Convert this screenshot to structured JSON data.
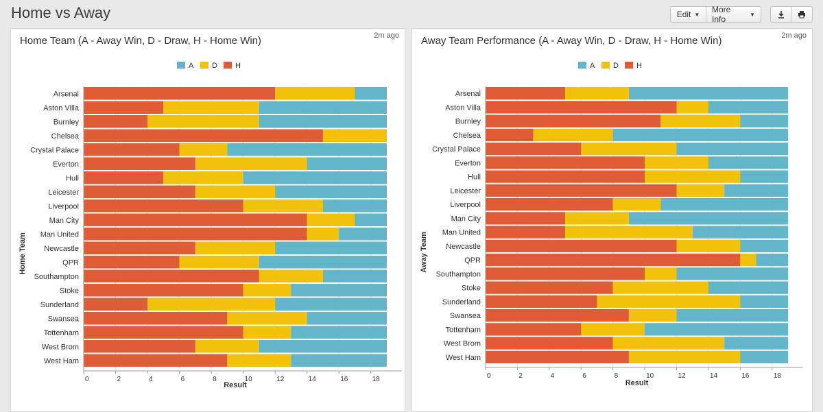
{
  "dashboard": {
    "title": "Home vs Away",
    "edit_label": "Edit",
    "more_info_label": "More Info",
    "download_icon": "download-icon",
    "print_icon": "print-icon"
  },
  "panels": {
    "home": {
      "title": "Home Team (A - Away Win, D - Draw, H - Home Win)",
      "timestamp": "2m ago"
    },
    "away": {
      "title": "Away Team Performance (A - Away Win, D - Draw, H - Home Win)",
      "timestamp": "2m ago"
    }
  },
  "chart_data": [
    {
      "type": "bar",
      "orientation": "horizontal",
      "stacked": true,
      "title": "Home Team (A - Away Win, D - Draw, H - Home Win)",
      "xlabel": "Result",
      "ylabel": "Home Team",
      "xlim": [
        0,
        19
      ],
      "xticks": [
        0,
        2,
        4,
        6,
        8,
        10,
        12,
        14,
        16,
        18
      ],
      "grid": true,
      "legend": "top-center",
      "categories": [
        "Arsenal",
        "Aston Villa",
        "Burnley",
        "Chelsea",
        "Crystal Palace",
        "Everton",
        "Hull",
        "Leicester",
        "Liverpool",
        "Man City",
        "Man United",
        "Newcastle",
        "QPR",
        "Southampton",
        "Stoke",
        "Sunderland",
        "Swansea",
        "Tottenham",
        "West Brom",
        "West Ham"
      ],
      "series": [
        {
          "name": "H",
          "color": "#e05c36",
          "values": [
            12,
            5,
            4,
            15,
            6,
            7,
            5,
            7,
            10,
            14,
            14,
            7,
            6,
            11,
            10,
            4,
            9,
            10,
            7,
            9
          ]
        },
        {
          "name": "D",
          "color": "#f2c10c",
          "values": [
            5,
            6,
            7,
            4,
            3,
            7,
            5,
            5,
            5,
            3,
            2,
            5,
            5,
            4,
            3,
            8,
            5,
            3,
            4,
            4
          ]
        },
        {
          "name": "A",
          "color": "#63b6c9",
          "values": [
            2,
            8,
            8,
            0,
            10,
            5,
            9,
            7,
            4,
            2,
            3,
            7,
            8,
            4,
            6,
            7,
            5,
            6,
            8,
            6
          ]
        }
      ],
      "legend_order": [
        "A",
        "D",
        "H"
      ]
    },
    {
      "type": "bar",
      "orientation": "horizontal",
      "stacked": true,
      "title": "Away Team Performance (A - Away Win, D - Draw, H - Home Win)",
      "xlabel": "Result",
      "ylabel": "Away Team",
      "xlim": [
        0,
        19
      ],
      "xticks": [
        0,
        2,
        4,
        6,
        8,
        10,
        12,
        14,
        16,
        18
      ],
      "grid": true,
      "legend": "top-center",
      "categories": [
        "Arsenal",
        "Aston Villa",
        "Burnley",
        "Chelsea",
        "Crystal Palace",
        "Everton",
        "Hull",
        "Leicester",
        "Liverpool",
        "Man City",
        "Man United",
        "Newcastle",
        "QPR",
        "Southampton",
        "Stoke",
        "Sunderland",
        "Swansea",
        "Tottenham",
        "West Brom",
        "West Ham"
      ],
      "series": [
        {
          "name": "H",
          "color": "#e05c36",
          "values": [
            5,
            12,
            11,
            3,
            6,
            10,
            10,
            12,
            8,
            5,
            5,
            12,
            16,
            10,
            8,
            7,
            9,
            6,
            8,
            9
          ]
        },
        {
          "name": "D",
          "color": "#f2c10c",
          "values": [
            4,
            2,
            5,
            5,
            6,
            4,
            6,
            3,
            3,
            4,
            8,
            4,
            1,
            2,
            6,
            9,
            3,
            4,
            7,
            7
          ]
        },
        {
          "name": "A",
          "color": "#63b6c9",
          "values": [
            10,
            5,
            3,
            11,
            7,
            5,
            3,
            4,
            8,
            10,
            6,
            3,
            2,
            7,
            5,
            3,
            7,
            9,
            4,
            3
          ]
        }
      ],
      "legend_order": [
        "A",
        "D",
        "H"
      ]
    }
  ]
}
